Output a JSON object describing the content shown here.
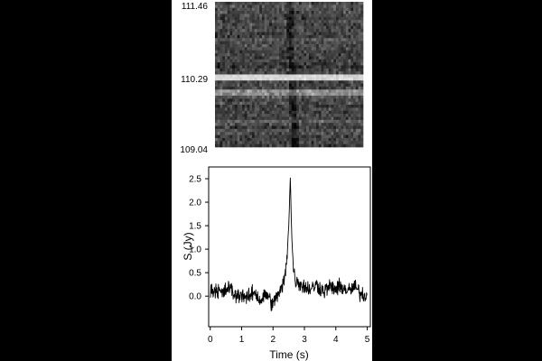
{
  "chart_data": [
    {
      "type": "heatmap",
      "title": "",
      "xlabel": "",
      "ylabel": "",
      "y_tick_labels": [
        "111.46",
        "110.29",
        "109.04"
      ],
      "ylim": [
        109.04,
        111.46
      ],
      "xlim": [
        0,
        5
      ],
      "colormap": "grayscale",
      "description_values": {
        "bright_band_frequency": 110.2,
        "dispersed_pulse_time_at_top": 2.5,
        "dispersed_pulse_time_at_bottom": 2.7
      }
    },
    {
      "type": "line",
      "title": "",
      "xlabel": "Time (s)",
      "ylabel": "S (Jy)",
      "xlim": [
        -0.05,
        5.1
      ],
      "ylim": [
        -0.65,
        2.75
      ],
      "x_ticks": [
        0,
        1,
        2,
        3,
        4,
        5
      ],
      "y_ticks": [
        0.0,
        0.5,
        1.0,
        1.5,
        2.0,
        2.5
      ],
      "x_tick_labels": [
        "0",
        "1",
        "2",
        "3",
        "4",
        "5"
      ],
      "y_tick_labels": [
        "0.0",
        "0.5",
        "1.0",
        "1.5",
        "2.0",
        "2.5"
      ],
      "grid": false,
      "series": [
        {
          "x": [
            0.0,
            0.2,
            0.4,
            0.6,
            0.8,
            1.0,
            1.2,
            1.4,
            1.6,
            1.8,
            2.0,
            2.1,
            2.2,
            2.3,
            2.4,
            2.45,
            2.5,
            2.52,
            2.55,
            2.58,
            2.6,
            2.65,
            2.7,
            2.8,
            3.0,
            3.2,
            3.4,
            3.6,
            3.8,
            4.0,
            4.2,
            4.4,
            4.6,
            4.8,
            5.0
          ],
          "y": [
            0.1,
            0.15,
            0.05,
            0.2,
            0.0,
            0.05,
            -0.05,
            0.1,
            -0.1,
            0.05,
            -0.2,
            0.0,
            0.05,
            0.2,
            0.5,
            0.9,
            1.5,
            1.9,
            2.55,
            1.7,
            1.2,
            0.6,
            0.35,
            0.3,
            0.2,
            0.15,
            0.25,
            0.1,
            0.2,
            0.15,
            0.2,
            0.1,
            0.2,
            0.05,
            0.0
          ],
          "noise_amplitude": 0.25
        }
      ]
    }
  ]
}
